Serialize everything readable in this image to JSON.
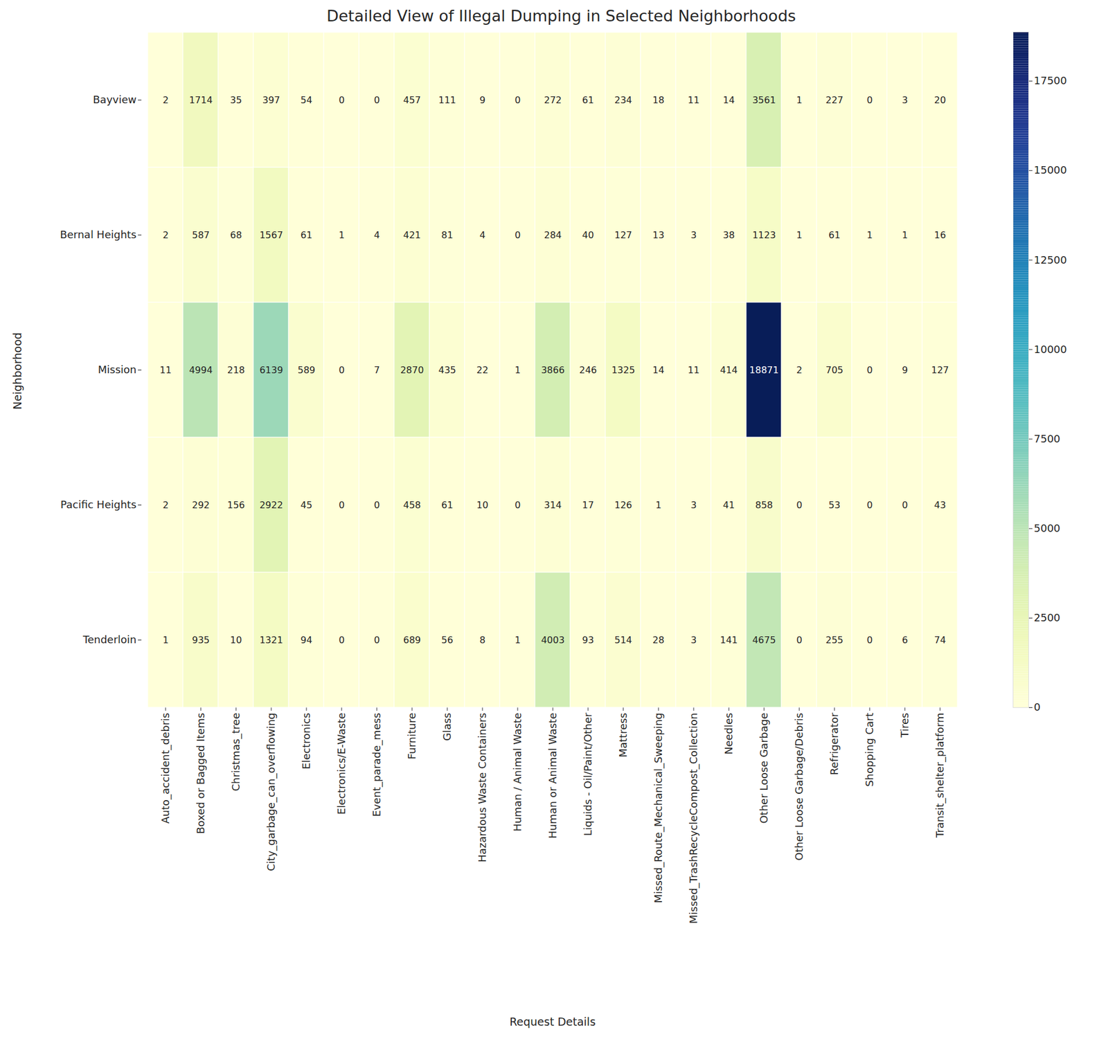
{
  "chart_data": {
    "type": "heatmap",
    "title": "Detailed View of Illegal Dumping in Selected Neighborhoods",
    "x_label": "Request Details",
    "y_label": "Neighborhood",
    "x_categories": [
      "Auto_accident_debris",
      "Boxed or Bagged Items",
      "Christmas_tree",
      "City_garbage_can_overflowing",
      "Electronics",
      "Electronics/E-Waste",
      "Event_parade_mess",
      "Furniture",
      "Glass",
      "Hazardous Waste Containers",
      "Human / Animal Waste",
      "Human or Animal Waste",
      "Liquids - Oil/Paint/Other",
      "Mattress",
      "Missed_Route_Mechanical_Sweeping",
      "Missed_TrashRecycleCompost_Collection",
      "Needles",
      "Other Loose Garbage",
      "Other Loose Garbage/Debris",
      "Refrigerator",
      "Shopping Cart",
      "Tires",
      "Transit_shelter_platform"
    ],
    "y_categories": [
      "Bayview",
      "Bernal Heights",
      "Mission",
      "Pacific Heights",
      "Tenderloin"
    ],
    "cells": [
      [
        2,
        1714,
        35,
        397,
        54,
        0,
        0,
        457,
        111,
        9,
        0,
        272,
        61,
        234,
        18,
        11,
        14,
        3561,
        1,
        227,
        0,
        3,
        20
      ],
      [
        2,
        587,
        68,
        1567,
        61,
        1,
        4,
        421,
        81,
        4,
        0,
        284,
        40,
        127,
        13,
        3,
        38,
        1123,
        1,
        61,
        1,
        1,
        16
      ],
      [
        11,
        4994,
        218,
        6139,
        589,
        0,
        7,
        2870,
        435,
        22,
        1,
        3866,
        246,
        1325,
        14,
        11,
        414,
        18871,
        2,
        705,
        0,
        9,
        127
      ],
      [
        2,
        292,
        156,
        2922,
        45,
        0,
        0,
        458,
        61,
        10,
        0,
        314,
        17,
        126,
        1,
        3,
        41,
        858,
        0,
        53,
        0,
        0,
        43
      ],
      [
        1,
        935,
        10,
        1321,
        94,
        0,
        0,
        689,
        56,
        8,
        1,
        4003,
        93,
        514,
        28,
        3,
        141,
        4675,
        0,
        255,
        0,
        6,
        74
      ]
    ],
    "colorbar": {
      "range": [
        0,
        18871
      ],
      "ticks": [
        0,
        2500,
        5000,
        7500,
        10000,
        12500,
        15000,
        17500
      ]
    },
    "color": "YlGnBu",
    "data_labels": true
  }
}
